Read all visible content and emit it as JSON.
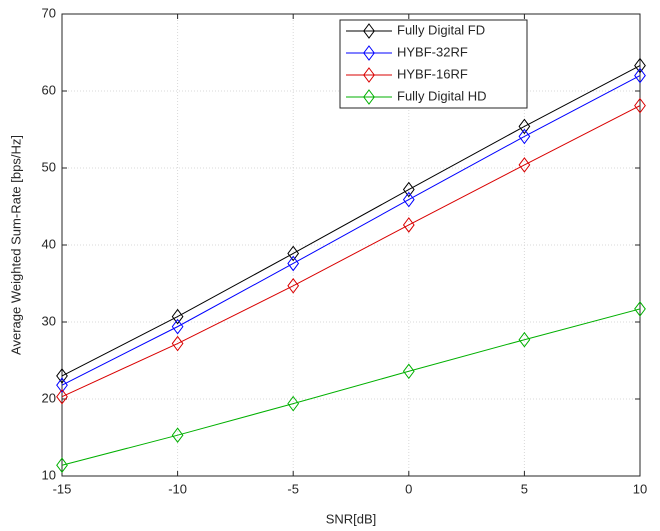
{
  "chart_data": {
    "type": "line",
    "xlabel": "SNR[dB]",
    "ylabel": "Average Weighted Sum-Rate [bps/Hz]",
    "x": [
      -15,
      -10,
      -5,
      0,
      5,
      10
    ],
    "xlim": [
      -15,
      10
    ],
    "xticks": [
      -15,
      -10,
      -5,
      0,
      5,
      10
    ],
    "ylim": [
      10,
      70
    ],
    "yticks": [
      10,
      20,
      30,
      40,
      50,
      60,
      70
    ],
    "grid": true,
    "legend": "upper right",
    "series": [
      {
        "name": "Fully Digital FD",
        "color": "#000000",
        "values": [
          23.0,
          30.7,
          38.9,
          47.2,
          55.4,
          63.3
        ]
      },
      {
        "name": "HYBF-32RF",
        "color": "#0000ff",
        "values": [
          21.8,
          29.4,
          37.6,
          45.9,
          54.1,
          62.0
        ]
      },
      {
        "name": "HYBF-16RF",
        "color": "#d90000",
        "values": [
          20.3,
          27.2,
          34.7,
          42.6,
          50.4,
          58.1
        ]
      },
      {
        "name": "Fully Digital HD",
        "color": "#00b000",
        "values": [
          11.4,
          15.3,
          19.4,
          23.6,
          27.7,
          31.7
        ]
      }
    ]
  }
}
